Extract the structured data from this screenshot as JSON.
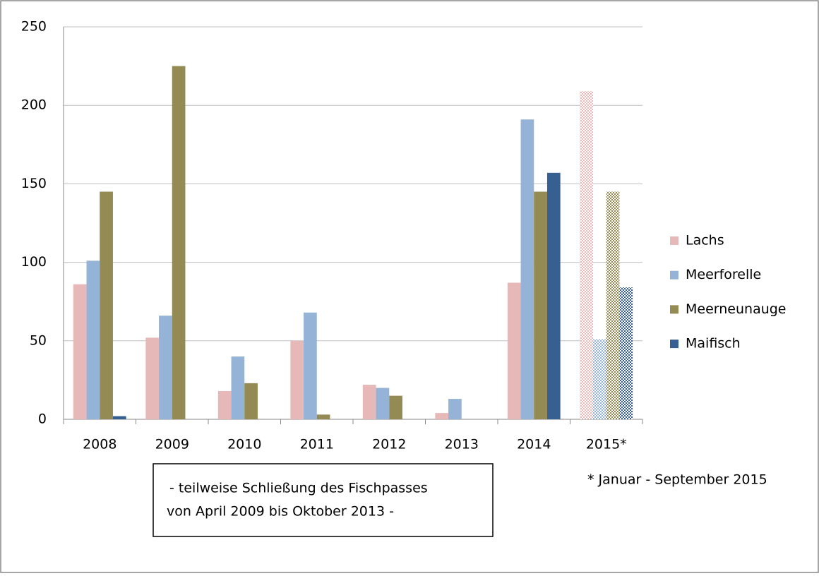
{
  "chart_data": {
    "type": "bar",
    "categories": [
      "2008",
      "2009",
      "2010",
      "2011",
      "2012",
      "2013",
      "2014",
      "2015*"
    ],
    "series": [
      {
        "name": "Lachs",
        "color": "#e6b9b8",
        "values": [
          86,
          52,
          18,
          50,
          22,
          4,
          87,
          209
        ]
      },
      {
        "name": "Meerforelle",
        "color": "#95b3d7",
        "values": [
          101,
          66,
          40,
          68,
          20,
          13,
          191,
          51
        ]
      },
      {
        "name": "Meerneunauge",
        "color": "#948a54",
        "values": [
          145,
          225,
          23,
          3,
          15,
          0,
          145,
          145
        ]
      },
      {
        "name": "Maifisch",
        "color": "#376092",
        "values": [
          2,
          0,
          0,
          0,
          0,
          0,
          157,
          84
        ]
      }
    ],
    "ylim": [
      0,
      250
    ],
    "yticks": [
      0,
      50,
      100,
      150,
      200,
      250
    ],
    "grid": true,
    "legend": "right",
    "hatched_categories": [
      "2015*"
    ],
    "annotations": [
      "- teilweise Schließung des Fischpasses",
      "von April 2009 bis Oktober 2013 -"
    ],
    "footnote": "* Januar - September 2015"
  }
}
